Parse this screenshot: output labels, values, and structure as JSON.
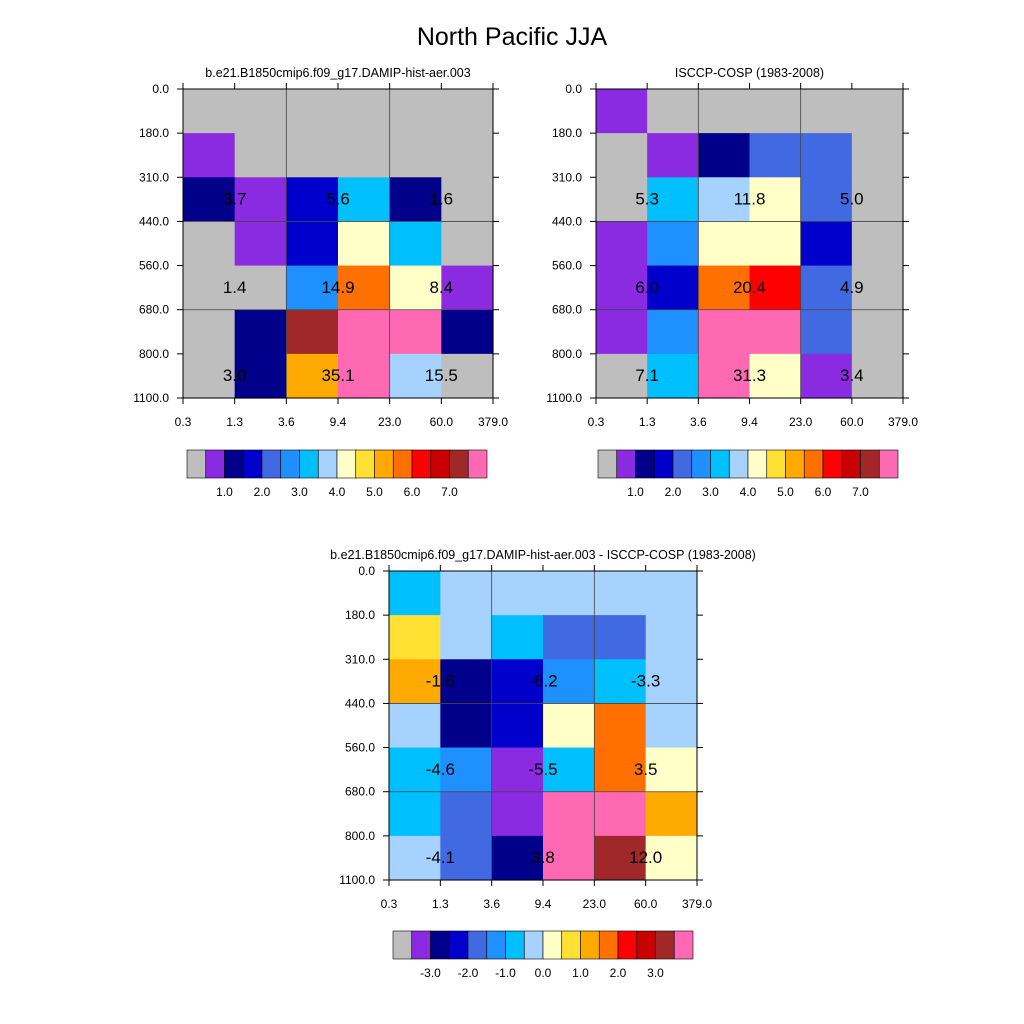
{
  "title": "North Pacific JJA",
  "palettes": {
    "abs": [
      "#bebebe",
      "#8a2be2",
      "#00008b",
      "#0000cd",
      "#4169e1",
      "#1e90ff",
      "#00bfff",
      "#a6d2ff",
      "#ffffc8",
      "#ffe033",
      "#ffaa00",
      "#ff7000",
      "#ff0000",
      "#c80000",
      "#a02828",
      "#ff69b4"
    ],
    "diff": [
      "#bebebe",
      "#8a2be2",
      "#00008b",
      "#0000cd",
      "#4169e1",
      "#1e90ff",
      "#00bfff",
      "#a6d2ff",
      "#ffffc8",
      "#ffe033",
      "#ffaa00",
      "#ff7000",
      "#ff0000",
      "#c80000",
      "#a02828",
      "#ff69b4"
    ]
  },
  "chart_data": [
    {
      "type": "heatmap",
      "title": "b.e21.B1850cmip6.f09_g17.DAMIP-hist-aer.003",
      "x_tick_labels": [
        "0.3",
        "1.3",
        "3.6",
        "9.4",
        "23.0",
        "60.0",
        "379.0"
      ],
      "y_tick_labels": [
        "0.0",
        "180.0",
        "310.0",
        "440.0",
        "560.0",
        "680.0",
        "800.0",
        "1100.0"
      ],
      "palette": "abs",
      "colorbar_labels": [
        "1.0",
        "2.0",
        "3.0",
        "4.0",
        "5.0",
        "6.0",
        "7.0"
      ],
      "cells": [
        [
          0,
          0,
          0,
          0,
          0,
          0
        ],
        [
          1,
          0,
          0,
          0,
          0,
          0
        ],
        [
          2,
          1,
          3,
          6,
          2,
          0
        ],
        [
          0,
          1,
          3,
          8,
          6,
          0
        ],
        [
          0,
          0,
          5,
          11,
          8,
          1
        ],
        [
          0,
          2,
          14,
          15,
          15,
          2
        ],
        [
          0,
          2,
          10,
          15,
          7,
          0
        ]
      ],
      "annotations": [
        {
          "label": "3.7",
          "col": 1,
          "row": 2
        },
        {
          "label": "5.6",
          "col": 3,
          "row": 2
        },
        {
          "label": "1.6",
          "col": 5,
          "row": 2
        },
        {
          "label": "1.4",
          "col": 1,
          "row": 4
        },
        {
          "label": "14.9",
          "col": 3,
          "row": 4
        },
        {
          "label": "8.4",
          "col": 5,
          "row": 4
        },
        {
          "label": "3.0",
          "col": 1,
          "row": 6
        },
        {
          "label": "35.1",
          "col": 3,
          "row": 6
        },
        {
          "label": "15.5",
          "col": 5,
          "row": 6
        }
      ]
    },
    {
      "type": "heatmap",
      "title": "ISCCP-COSP (1983-2008)",
      "x_tick_labels": [
        "0.3",
        "1.3",
        "3.6",
        "9.4",
        "23.0",
        "60.0",
        "379.0"
      ],
      "y_tick_labels": [
        "0.0",
        "180.0",
        "310.0",
        "440.0",
        "560.0",
        "680.0",
        "800.0",
        "1100.0"
      ],
      "palette": "abs",
      "colorbar_labels": [
        "1.0",
        "2.0",
        "3.0",
        "4.0",
        "5.0",
        "6.0",
        "7.0"
      ],
      "cells": [
        [
          1,
          0,
          0,
          0,
          0,
          0
        ],
        [
          0,
          1,
          2,
          4,
          4,
          0
        ],
        [
          0,
          6,
          7,
          8,
          4,
          0
        ],
        [
          1,
          5,
          8,
          8,
          3,
          0
        ],
        [
          1,
          3,
          11,
          12,
          4,
          0
        ],
        [
          1,
          5,
          15,
          15,
          4,
          0
        ],
        [
          0,
          6,
          15,
          8,
          1,
          0
        ]
      ],
      "annotations": [
        {
          "label": "5.3",
          "col": 1,
          "row": 2
        },
        {
          "label": "11.8",
          "col": 3,
          "row": 2
        },
        {
          "label": "5.0",
          "col": 5,
          "row": 2
        },
        {
          "label": "6.0",
          "col": 1,
          "row": 4
        },
        {
          "label": "20.4",
          "col": 3,
          "row": 4
        },
        {
          "label": "4.9",
          "col": 5,
          "row": 4
        },
        {
          "label": "7.1",
          "col": 1,
          "row": 6
        },
        {
          "label": "31.3",
          "col": 3,
          "row": 6
        },
        {
          "label": "3.4",
          "col": 5,
          "row": 6
        }
      ]
    },
    {
      "type": "heatmap",
      "title": "b.e21.B1850cmip6.f09_g17.DAMIP-hist-aer.003 - ISCCP-COSP (1983-2008)",
      "x_tick_labels": [
        "0.3",
        "1.3",
        "3.6",
        "9.4",
        "23.0",
        "60.0",
        "379.0"
      ],
      "y_tick_labels": [
        "0.0",
        "180.0",
        "310.0",
        "440.0",
        "560.0",
        "680.0",
        "800.0",
        "1100.0"
      ],
      "palette": "diff",
      "colorbar_labels": [
        "-3.0",
        "-2.0",
        "-1.0",
        "0.0",
        "1.0",
        "2.0",
        "3.0"
      ],
      "cells": [
        [
          6,
          7,
          7,
          7,
          7,
          7
        ],
        [
          9,
          7,
          6,
          4,
          4,
          7
        ],
        [
          10,
          2,
          3,
          5,
          6,
          7
        ],
        [
          7,
          2,
          3,
          8,
          11,
          7
        ],
        [
          6,
          5,
          1,
          6,
          11,
          8
        ],
        [
          6,
          4,
          1,
          15,
          15,
          10
        ],
        [
          7,
          4,
          2,
          15,
          14,
          8
        ]
      ],
      "annotations": [
        {
          "label": "-1.6",
          "col": 1,
          "row": 2
        },
        {
          "label": "-6.2",
          "col": 3,
          "row": 2
        },
        {
          "label": "-3.3",
          "col": 5,
          "row": 2
        },
        {
          "label": "-4.6",
          "col": 1,
          "row": 4
        },
        {
          "label": "-5.5",
          "col": 3,
          "row": 4
        },
        {
          "label": "3.5",
          "col": 5,
          "row": 4
        },
        {
          "label": "-4.1",
          "col": 1,
          "row": 6
        },
        {
          "label": "3.8",
          "col": 3,
          "row": 6
        },
        {
          "label": "12.0",
          "col": 5,
          "row": 6
        }
      ]
    }
  ]
}
